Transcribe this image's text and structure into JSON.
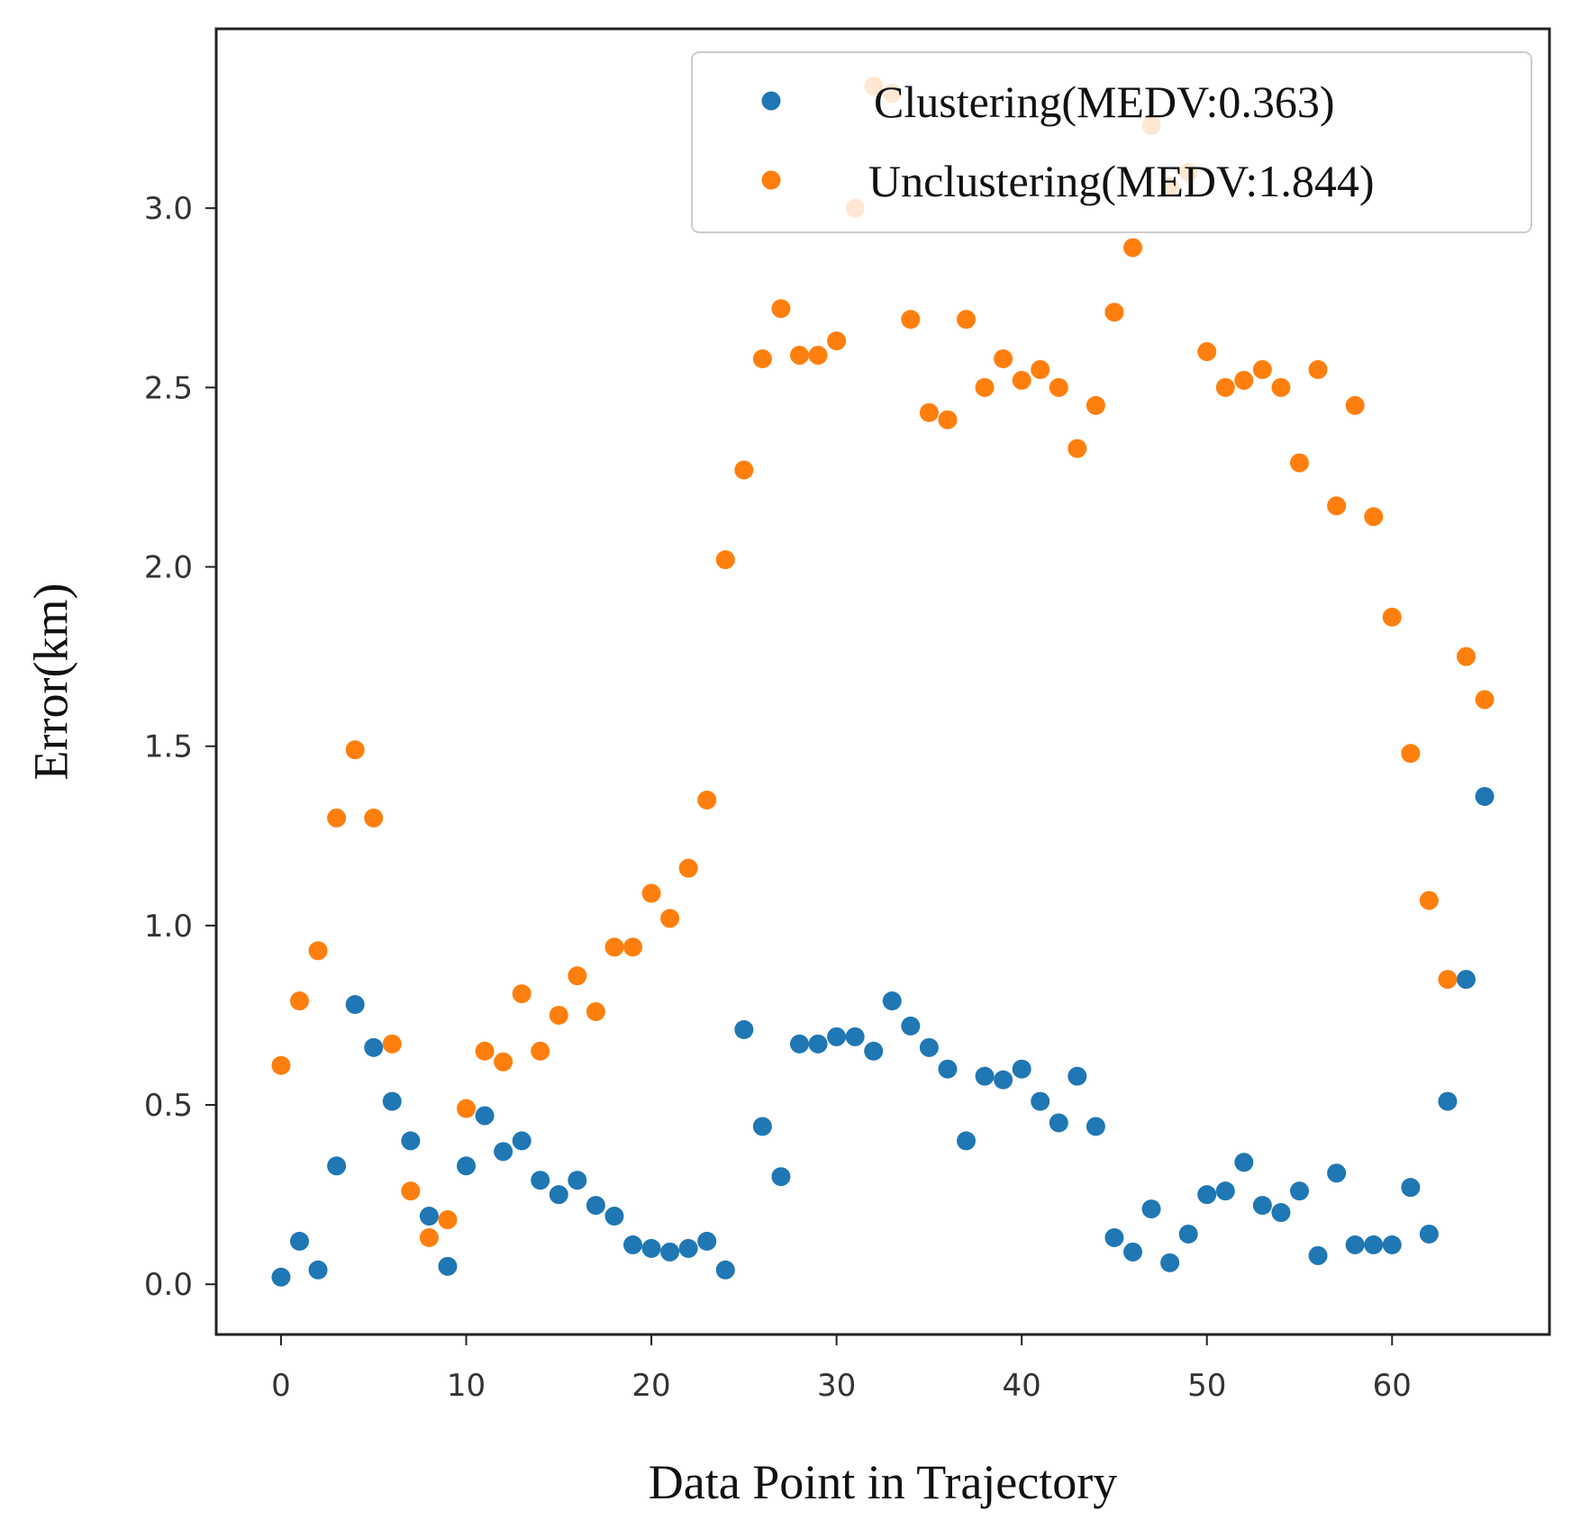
{
  "chart_data": {
    "type": "scatter",
    "title": "",
    "xlabel": "Data Point in Trajectory",
    "ylabel": "Error(km)",
    "xlim": [
      -3.5,
      68.5
    ],
    "ylim": [
      -0.14,
      3.5
    ],
    "xticks": [
      0,
      10,
      20,
      30,
      40,
      50,
      60
    ],
    "yticks": [
      0.0,
      0.5,
      1.0,
      1.5,
      2.0,
      2.5,
      3.0
    ],
    "xtick_labels": [
      "0",
      "10",
      "20",
      "30",
      "40",
      "50",
      "60"
    ],
    "ytick_labels": [
      "0.0",
      "0.5",
      "1.0",
      "1.5",
      "2.0",
      "2.5",
      "3.0"
    ],
    "grid": false,
    "legend_position": "top-right",
    "series": [
      {
        "name": "Clustering(MEDV:0.363)",
        "color": "#1f77b4",
        "x": [
          0,
          1,
          2,
          3,
          4,
          5,
          6,
          7,
          8,
          9,
          10,
          11,
          12,
          13,
          14,
          15,
          16,
          17,
          18,
          19,
          20,
          21,
          22,
          23,
          24,
          25,
          26,
          27,
          28,
          29,
          30,
          31,
          32,
          33,
          34,
          35,
          36,
          37,
          38,
          39,
          40,
          41,
          42,
          43,
          44,
          45,
          46,
          47,
          48,
          49,
          50,
          51,
          52,
          53,
          54,
          55,
          56,
          57,
          58,
          59,
          60,
          61,
          62,
          63,
          64,
          65
        ],
        "y": [
          0.02,
          0.12,
          0.04,
          0.33,
          0.78,
          0.66,
          0.51,
          0.4,
          0.19,
          0.05,
          0.33,
          0.47,
          0.37,
          0.4,
          0.29,
          0.25,
          0.29,
          0.22,
          0.19,
          0.11,
          0.1,
          0.09,
          0.1,
          0.12,
          0.04,
          0.71,
          0.44,
          0.3,
          0.67,
          0.67,
          0.69,
          0.69,
          0.65,
          0.79,
          0.72,
          0.66,
          0.6,
          0.4,
          0.58,
          0.57,
          0.6,
          0.51,
          0.45,
          0.58,
          0.44,
          0.13,
          0.09,
          0.21,
          0.06,
          0.14,
          0.25,
          0.26,
          0.34,
          0.22,
          0.2,
          0.26,
          0.08,
          0.31,
          0.11,
          0.11,
          0.11,
          0.27,
          0.14,
          0.51,
          0.85,
          1.36
        ]
      },
      {
        "name": "Unclustering(MEDV:1.844)",
        "color": "#ff7f0e",
        "x": [
          0,
          1,
          2,
          3,
          4,
          5,
          6,
          7,
          8,
          9,
          10,
          11,
          12,
          13,
          14,
          15,
          16,
          17,
          18,
          19,
          20,
          21,
          22,
          23,
          24,
          25,
          26,
          27,
          28,
          29,
          30,
          31,
          32,
          33,
          34,
          35,
          36,
          37,
          38,
          39,
          40,
          41,
          42,
          43,
          44,
          45,
          46,
          47,
          48,
          49,
          50,
          51,
          52,
          53,
          54,
          55,
          56,
          57,
          58,
          59,
          60,
          61,
          62,
          63,
          64,
          65
        ],
        "y": [
          0.61,
          0.79,
          0.93,
          1.3,
          1.49,
          1.3,
          0.67,
          0.26,
          0.13,
          0.18,
          0.49,
          0.65,
          0.62,
          0.81,
          0.65,
          0.75,
          0.86,
          0.76,
          0.94,
          0.94,
          1.09,
          1.02,
          1.16,
          1.35,
          2.02,
          2.27,
          2.58,
          2.72,
          2.59,
          2.59,
          2.63,
          3.0,
          3.34,
          3.32,
          2.69,
          2.43,
          2.41,
          2.69,
          2.5,
          2.58,
          2.52,
          2.55,
          2.5,
          2.33,
          2.45,
          2.71,
          2.89,
          3.23,
          3.06,
          3.1,
          2.6,
          2.5,
          2.52,
          2.55,
          2.5,
          2.29,
          2.55,
          2.17,
          2.45,
          2.14,
          1.86,
          1.48,
          1.07,
          0.85,
          1.75,
          1.63
        ]
      }
    ]
  }
}
